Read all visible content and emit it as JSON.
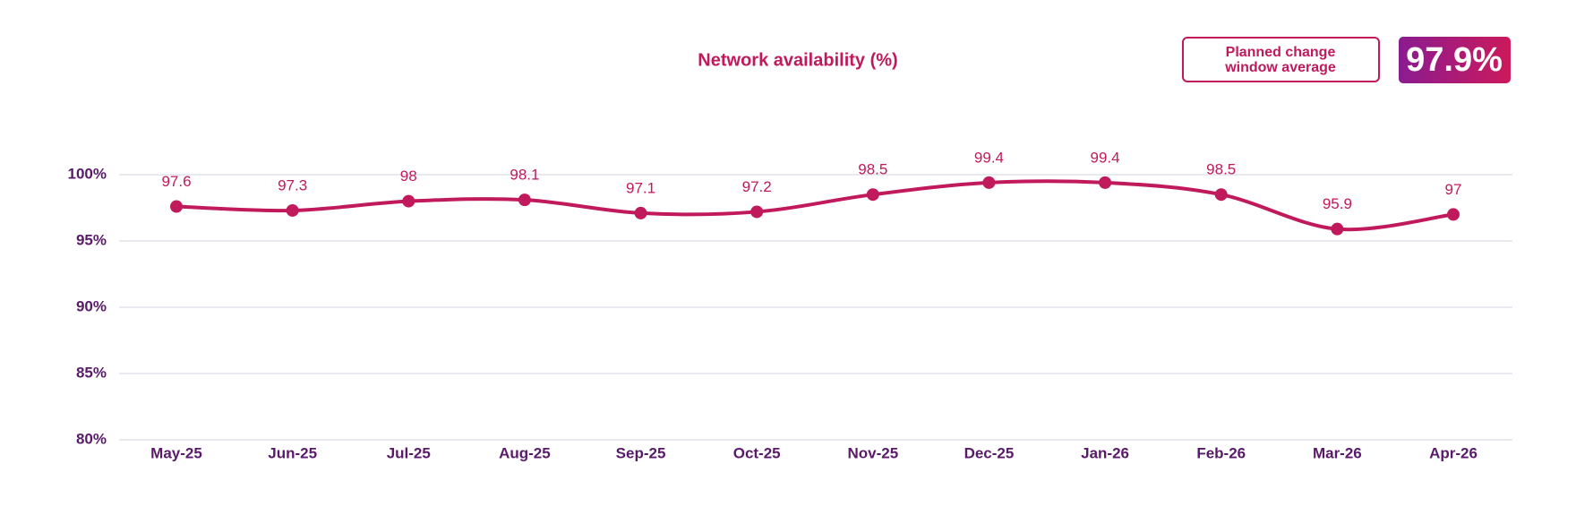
{
  "chart_data": {
    "type": "line",
    "title": "Network availability (%)",
    "categories": [
      "May-25",
      "Jun-25",
      "Jul-25",
      "Aug-25",
      "Sep-25",
      "Oct-25",
      "Nov-25",
      "Dec-25",
      "Jan-26",
      "Feb-26",
      "Mar-26",
      "Apr-26"
    ],
    "series": [
      {
        "name": "Network availability",
        "color": "#c01a5c",
        "values": [
          97.6,
          97.3,
          98.0,
          98.1,
          97.1,
          97.2,
          98.5,
          99.4,
          99.4,
          98.5,
          95.9,
          97.0
        ]
      }
    ],
    "ylim": [
      80,
      100
    ],
    "yticks": [
      {
        "value": 80,
        "label": "80%"
      },
      {
        "value": 85,
        "label": "85%"
      },
      {
        "value": 90,
        "label": "90%"
      },
      {
        "value": 95,
        "label": "95%"
      },
      {
        "value": 100,
        "label": "100%"
      }
    ],
    "grid": true,
    "badge": {
      "label": [
        "Planned change",
        "window average"
      ],
      "value": "97.9%"
    }
  }
}
